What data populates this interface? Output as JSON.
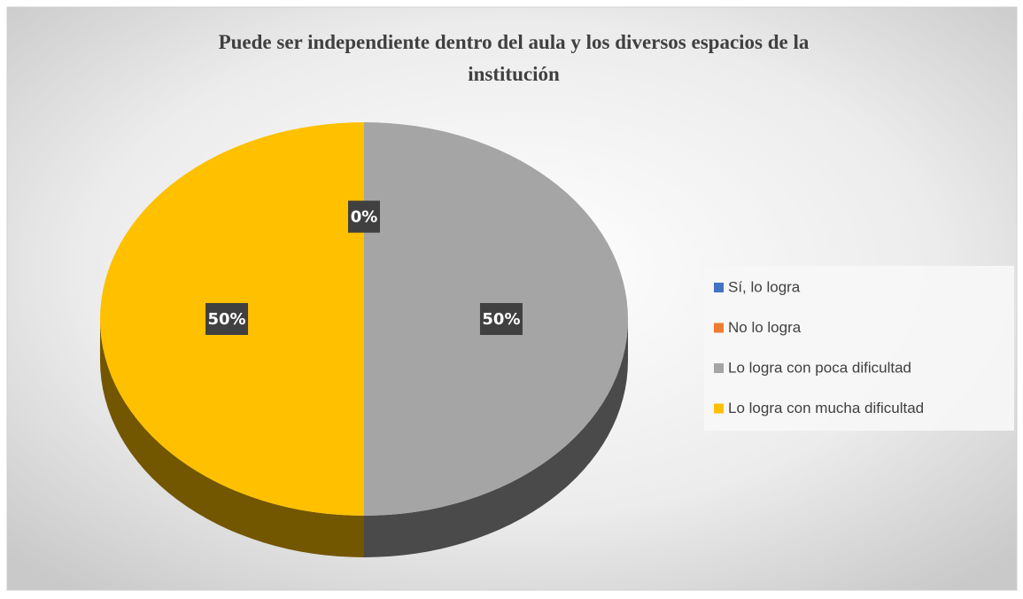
{
  "chart_data": {
    "type": "pie",
    "title": "Puede ser independiente dentro del aula y los diversos espacios de la institución",
    "categories": [
      "Sí, lo logra",
      "No lo logra",
      "Lo logra con poca dificultad",
      "Lo logra con mucha dificultad"
    ],
    "values": [
      0,
      0,
      50,
      50
    ],
    "value_labels": [
      "0%",
      "0%",
      "50%",
      "50%"
    ],
    "colors": [
      "#4472c4",
      "#ed7d31",
      "#a5a5a5",
      "#ffc000"
    ],
    "legend": "right"
  }
}
